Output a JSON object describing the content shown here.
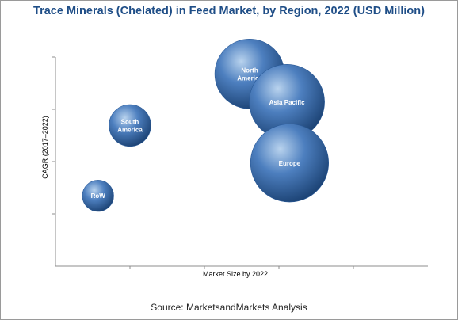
{
  "chart_data": {
    "type": "scatter",
    "title": "Trace Minerals (Chelated) in Feed Market, by Region, 2022 (USD Million)",
    "xlabel": "Market Size by 2022",
    "ylabel": "CAGR (2017–2022)",
    "grid": false,
    "points": [
      {
        "label": "RoW",
        "x": 0.16,
        "y": 0.3,
        "size": 0.45
      },
      {
        "label": "South\nAmerica",
        "x": 0.28,
        "y": 0.6,
        "size": 0.6
      },
      {
        "label": "North\nAmerica",
        "x": 0.73,
        "y": 0.82,
        "size": 1.0
      },
      {
        "label": "Asia Pacific",
        "x": 0.87,
        "y": 0.7,
        "size": 1.08
      },
      {
        "label": "Europe",
        "x": 0.88,
        "y": 0.44,
        "size": 1.12
      }
    ],
    "xlim": [
      0,
      1.4
    ],
    "ylim": [
      0,
      1.0
    ],
    "colors": {
      "bubble_light": "#b9d3ee",
      "bubble_mid": "#4d7fbf",
      "bubble_dark": "#1d4476"
    }
  },
  "source": "Source: MarketsandMarkets Analysis"
}
